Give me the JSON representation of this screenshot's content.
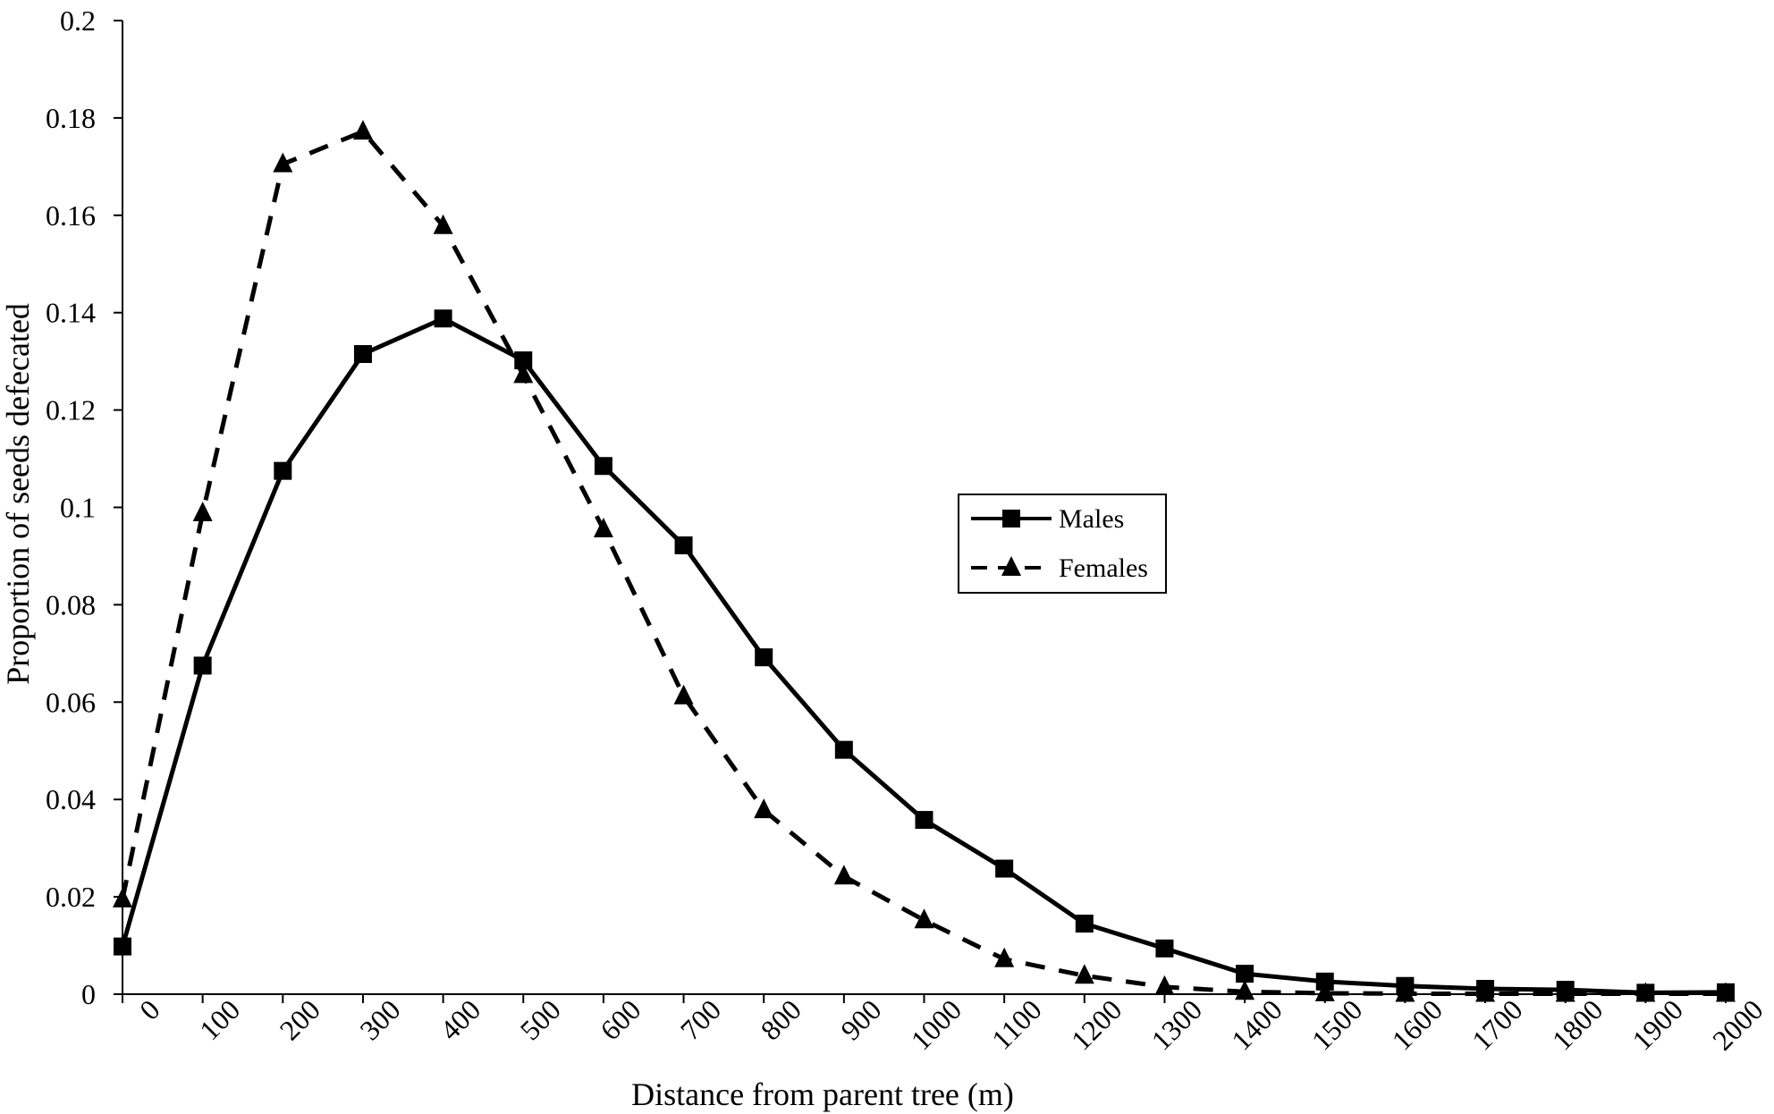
{
  "chart_data": {
    "type": "line",
    "title": "",
    "xlabel": "Distance from parent tree (m)",
    "ylabel": "Proportion of seeds defecated",
    "x": [
      0,
      100,
      200,
      300,
      400,
      500,
      600,
      700,
      800,
      900,
      1000,
      1100,
      1200,
      1300,
      1400,
      1500,
      1600,
      1700,
      1800,
      1900,
      2000
    ],
    "x_tick_labels": [
      "0",
      "100",
      "200",
      "300",
      "400",
      "500",
      "600",
      "700",
      "800",
      "900",
      "1000",
      "1100",
      "1200",
      "1300",
      "1400",
      "1500",
      "1600",
      "1700",
      "1800",
      "1900",
      "2000"
    ],
    "y_tick_labels": [
      "0",
      "0.02",
      "0.04",
      "0.06",
      "0.08",
      "0.1",
      "0.12",
      "0.14",
      "0.16",
      "0.18",
      "0.2"
    ],
    "y_ticks": [
      0,
      0.02,
      0.04,
      0.06,
      0.08,
      0.1,
      0.12,
      0.14,
      0.16,
      0.18,
      0.2
    ],
    "xlim": [
      0,
      2000
    ],
    "ylim": [
      0,
      0.2
    ],
    "grid": false,
    "legend_position": "center-right",
    "series": [
      {
        "name": "Males",
        "marker": "square",
        "line_style": "solid",
        "color": "#000000",
        "values": [
          0.0098,
          0.0675,
          0.1075,
          0.1315,
          0.1388,
          0.1302,
          0.1085,
          0.0922,
          0.0692,
          0.0502,
          0.0358,
          0.0258,
          0.0145,
          0.0094,
          0.0042,
          0.0026,
          0.0017,
          0.0011,
          0.0009,
          0.0003,
          0.0004
        ]
      },
      {
        "name": "Females",
        "marker": "triangle",
        "line_style": "dashed",
        "color": "#000000",
        "values": [
          0.0195,
          0.0988,
          0.1705,
          0.1772,
          0.1578,
          0.1272,
          0.0955,
          0.0612,
          0.0378,
          0.0242,
          0.0152,
          0.0072,
          0.0038,
          0.0015,
          0.0005,
          0.0002,
          0.0001,
          0.0001,
          0.0001,
          0.0001,
          0.0001
        ]
      }
    ]
  }
}
